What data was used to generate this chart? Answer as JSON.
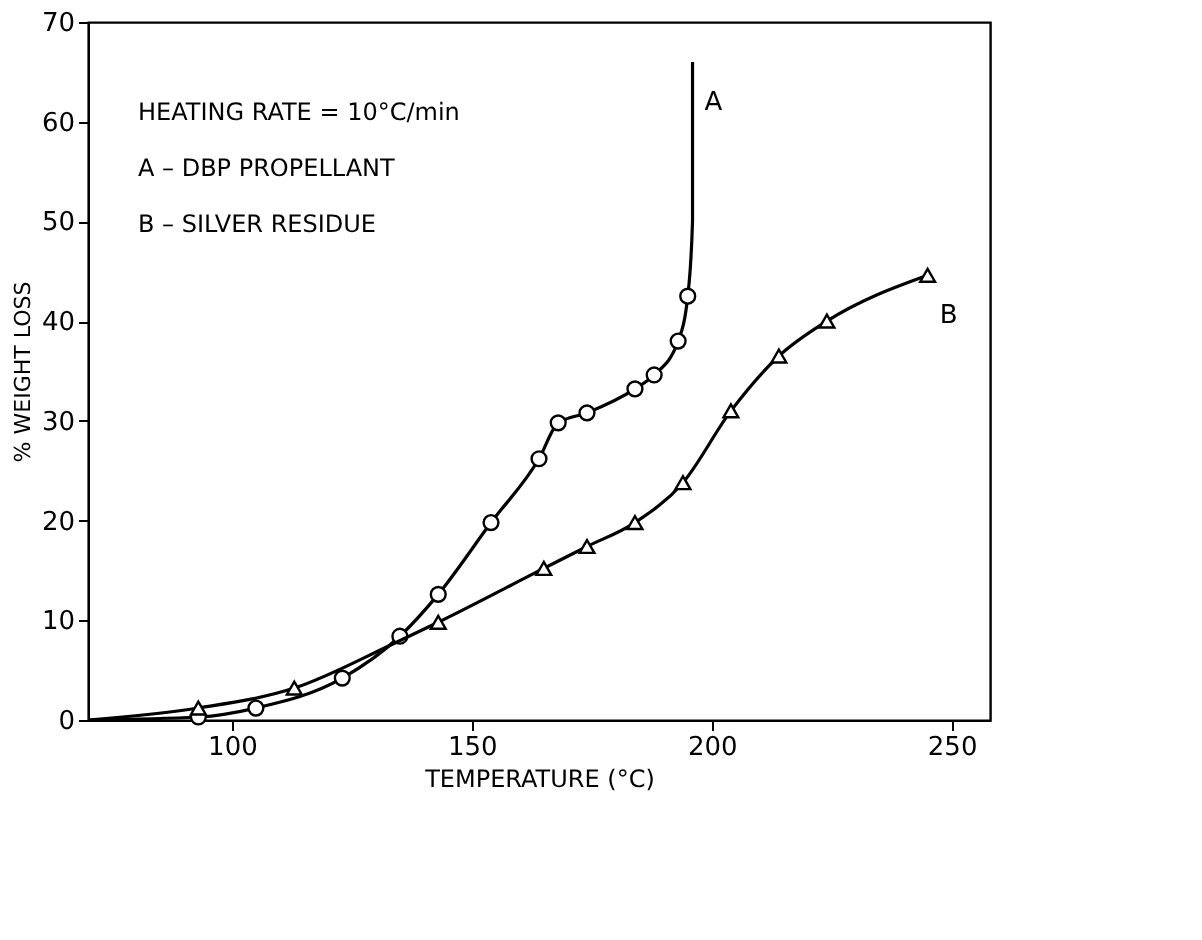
{
  "chart_data": {
    "type": "line",
    "xlabel": "TEMPERATURE (°C)",
    "ylabel": "% WEIGHT LOSS",
    "xlim": [
      70,
      258
    ],
    "ylim": [
      0,
      70
    ],
    "xticks": [
      100,
      150,
      200,
      250
    ],
    "yticks": [
      0,
      10,
      20,
      30,
      40,
      50,
      60,
      70
    ],
    "grid": false,
    "line_style": "solid",
    "series": [
      {
        "name": "A",
        "marker": "none",
        "color": "#000000",
        "x": [
          70,
          93,
          105,
          123,
          135,
          143,
          154,
          164,
          168,
          174,
          184,
          188,
          193,
          195,
          196,
          196
        ],
        "values": [
          0,
          0.3,
          1.2,
          4.2,
          8.4,
          12.6,
          19.8,
          26.2,
          29.8,
          30.8,
          33.2,
          34.6,
          38,
          42.5,
          50,
          66
        ]
      },
      {
        "type": "scatter",
        "marker": "circle",
        "color": "#000000",
        "x": [
          93,
          105,
          123,
          135,
          143,
          154,
          164,
          168,
          174,
          184,
          188,
          193,
          195
        ],
        "values": [
          0.3,
          1.2,
          4.2,
          8.4,
          12.6,
          19.8,
          26.2,
          29.8,
          30.8,
          33.2,
          34.6,
          38,
          42.5
        ]
      },
      {
        "name": "B",
        "marker": "none",
        "color": "#000000",
        "x": [
          70,
          93,
          113,
          133,
          143,
          165,
          174,
          184,
          194,
          204,
          214,
          224,
          245
        ],
        "values": [
          0,
          1.2,
          3.2,
          7.5,
          9.8,
          15.2,
          17.4,
          19.8,
          23.8,
          31,
          36.5,
          40,
          44.6
        ]
      },
      {
        "type": "scatter",
        "marker": "triangle",
        "color": "#000000",
        "x": [
          93,
          113,
          143,
          165,
          174,
          184,
          194,
          204,
          214,
          224,
          245
        ],
        "values": [
          1.2,
          3.2,
          9.8,
          15.2,
          17.4,
          19.8,
          23.8,
          31,
          36.5,
          40,
          44.6
        ]
      }
    ],
    "annotations": [
      "HEATING RATE = 10°C/min",
      "A – DBP PROPELLANT",
      "B – SILVER RESIDUE"
    ]
  }
}
